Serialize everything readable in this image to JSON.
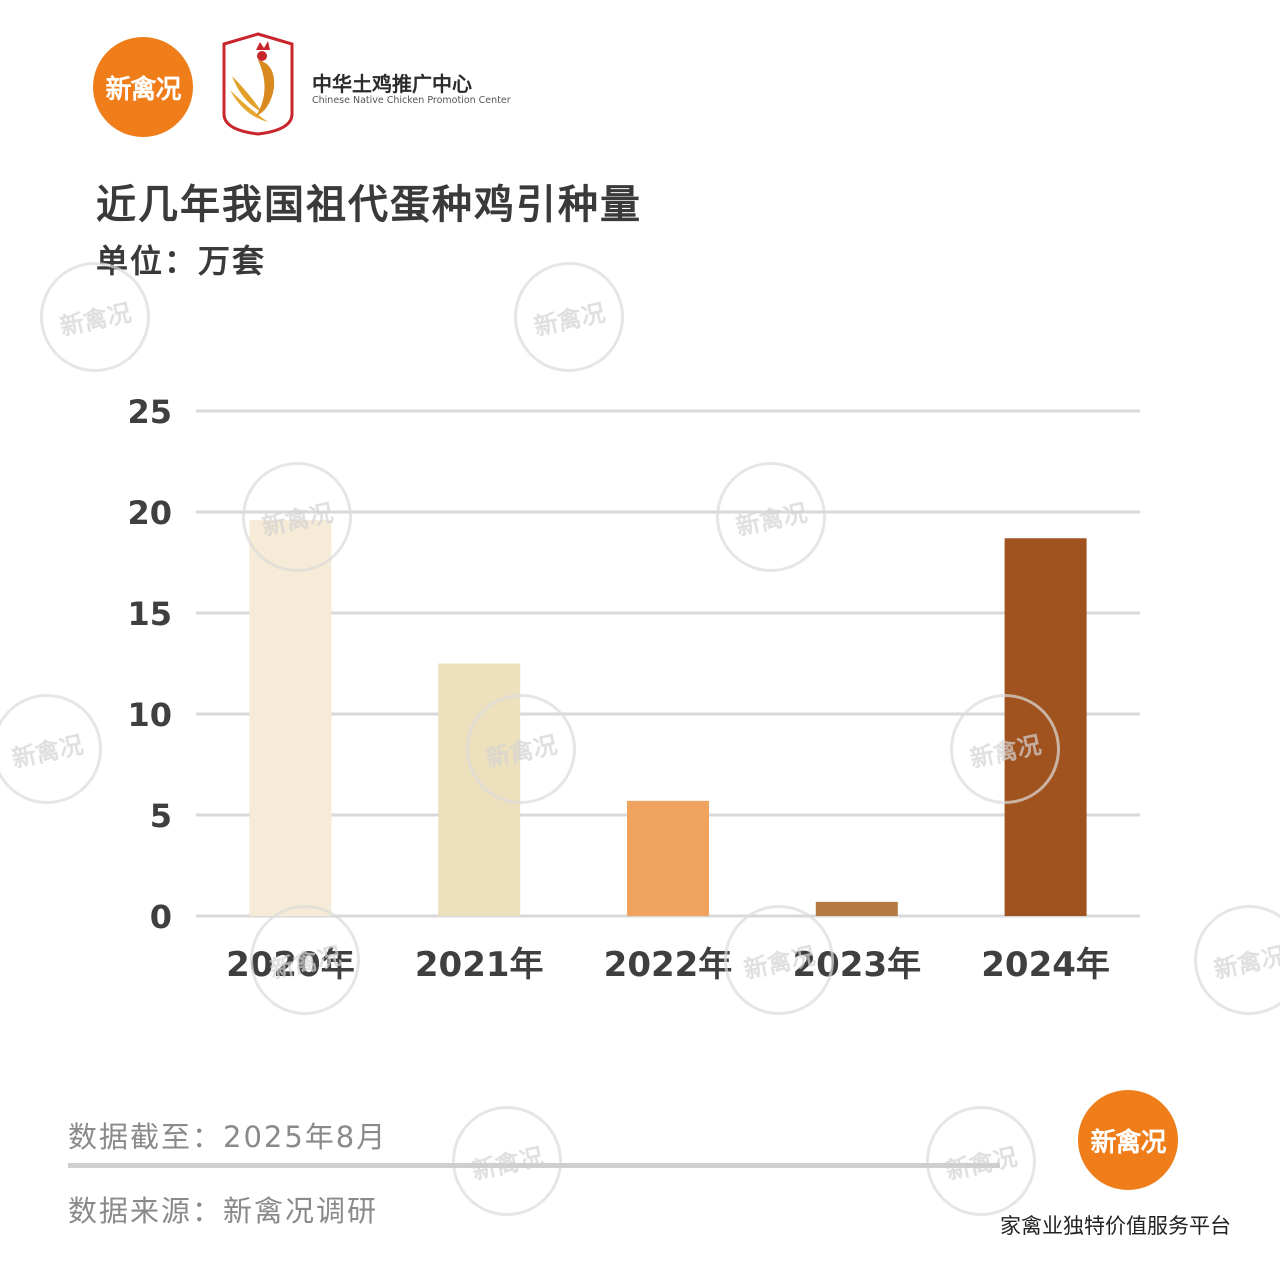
{
  "header": {
    "brand_logo_text": "新禽况",
    "partner_name": "中华土鸡推广中心",
    "partner_name_en": "Chinese Native Chicken Promotion Center"
  },
  "watermark_text": "新禽况",
  "chart_data": {
    "type": "bar",
    "title": "近几年我国祖代蛋种鸡引种量",
    "unit_label": "单位：万套",
    "categories": [
      "2020年",
      "2021年",
      "2022年",
      "2023年",
      "2024年"
    ],
    "values": [
      19.6,
      12.5,
      5.7,
      0.7,
      18.7
    ],
    "colors": [
      "#f5ebd6",
      "#ede0bd",
      "#f0a35e",
      "#b57a41",
      "#a0521f"
    ],
    "ylim": [
      0,
      25
    ],
    "yticks": [
      "0",
      "5",
      "10",
      "15",
      "20",
      "25"
    ],
    "grid": true,
    "legend": "none"
  },
  "footer": {
    "cutoff": "数据截至：2025年8月",
    "source": "数据来源：新禽况调研",
    "logo_text": "新禽况",
    "tagline": "家禽业独特价值服务平台"
  }
}
